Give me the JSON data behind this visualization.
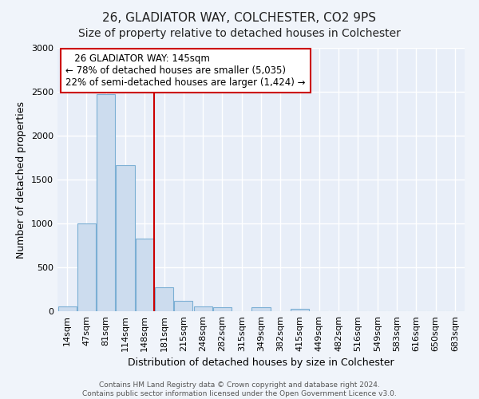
{
  "title": "26, GLADIATOR WAY, COLCHESTER, CO2 9PS",
  "subtitle": "Size of property relative to detached houses in Colchester",
  "xlabel": "Distribution of detached houses by size in Colchester",
  "ylabel": "Number of detached properties",
  "bin_labels": [
    "14sqm",
    "47sqm",
    "81sqm",
    "114sqm",
    "148sqm",
    "181sqm",
    "215sqm",
    "248sqm",
    "282sqm",
    "315sqm",
    "349sqm",
    "382sqm",
    "415sqm",
    "449sqm",
    "482sqm",
    "516sqm",
    "549sqm",
    "583sqm",
    "616sqm",
    "650sqm",
    "683sqm"
  ],
  "bar_heights": [
    55,
    1000,
    2470,
    1660,
    830,
    270,
    120,
    55,
    45,
    2,
    45,
    2,
    25,
    2,
    0,
    0,
    0,
    0,
    0,
    0,
    0
  ],
  "bar_color": "#ccdcee",
  "bar_edge_color": "#7bafd4",
  "vline_x": 4.5,
  "vline_color": "#cc0000",
  "ylim": [
    0,
    3000
  ],
  "yticks": [
    0,
    500,
    1000,
    1500,
    2000,
    2500,
    3000
  ],
  "annotation_title": "26 GLADIATOR WAY: 145sqm",
  "annotation_line1": "← 78% of detached houses are smaller (5,035)",
  "annotation_line2": "22% of semi-detached houses are larger (1,424) →",
  "annotation_box_facecolor": "#ffffff",
  "annotation_box_edgecolor": "#cc0000",
  "footer_line1": "Contains HM Land Registry data © Crown copyright and database right 2024.",
  "footer_line2": "Contains public sector information licensed under the Open Government Licence v3.0.",
  "fig_facecolor": "#f0f4fa",
  "ax_facecolor": "#e8eef8",
  "grid_color": "#ffffff",
  "title_fontsize": 11,
  "subtitle_fontsize": 10,
  "ylabel_fontsize": 9,
  "xlabel_fontsize": 9,
  "tick_fontsize": 8,
  "annotation_fontsize": 8.5,
  "footer_fontsize": 6.5
}
